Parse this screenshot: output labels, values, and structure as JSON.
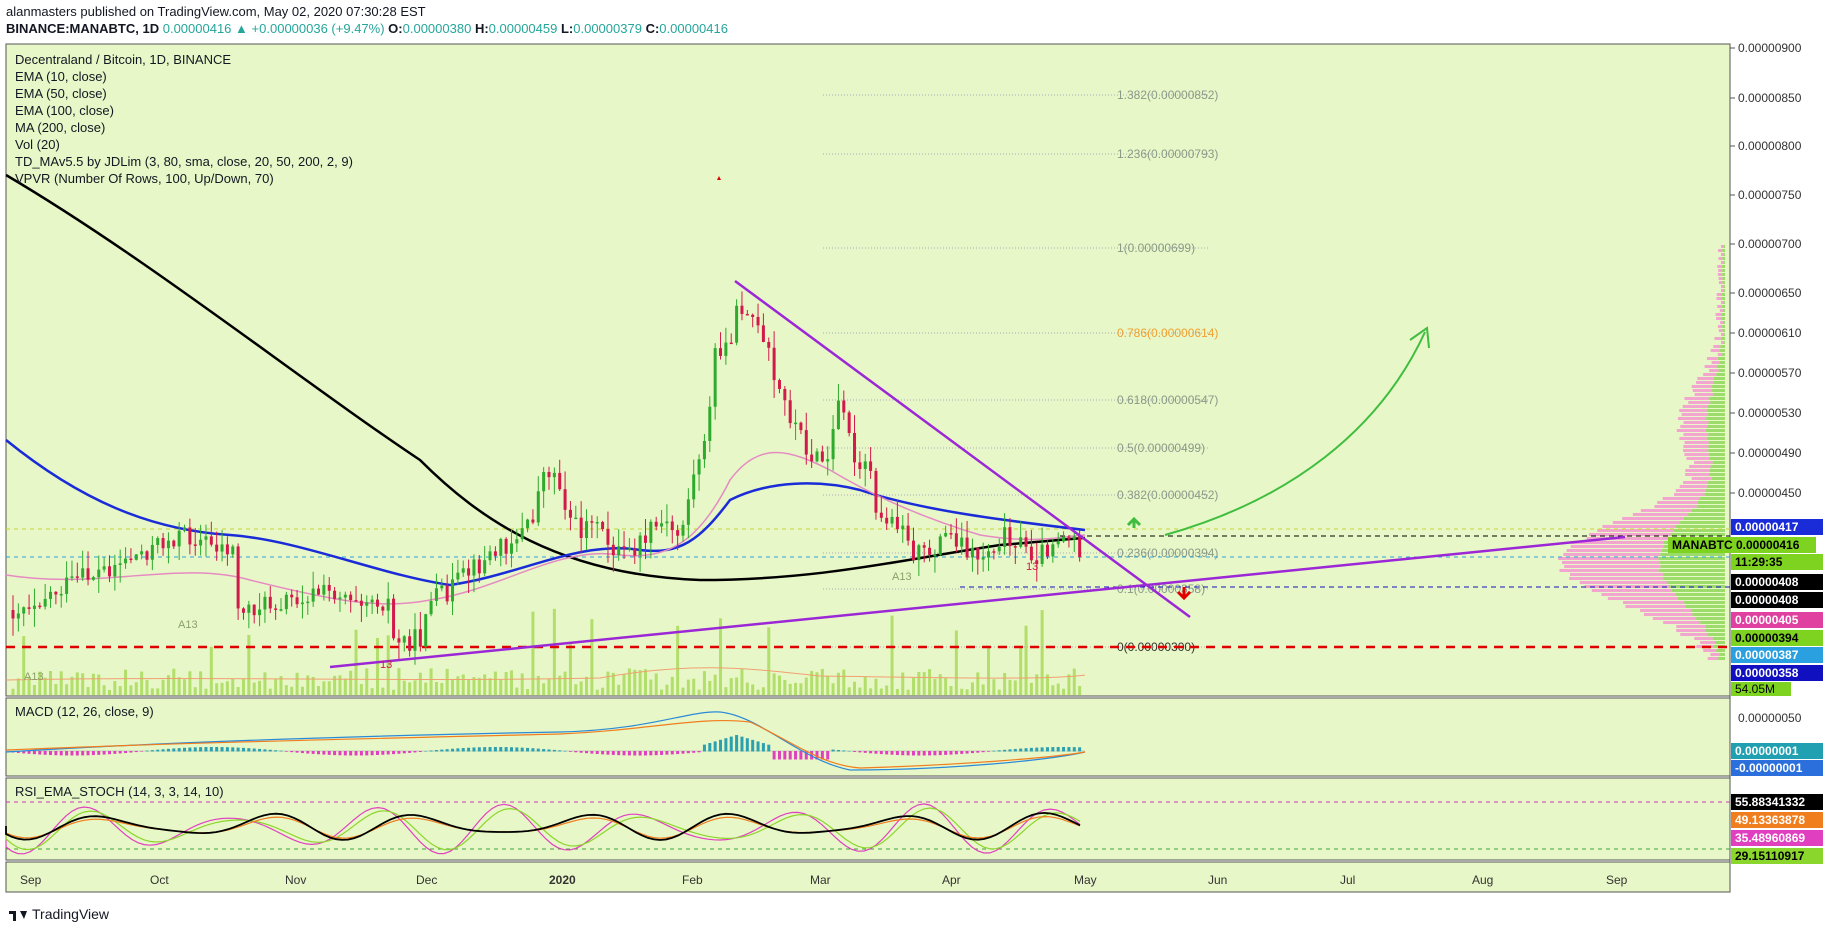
{
  "header": {
    "publisher_line": "alanmasters published on TradingView.com, May 02, 2020 07:30:28 EST",
    "symbol": "BINANCE:MANABTC, 1D",
    "last": "0.00000416",
    "change": "+0.00000036 (+9.47%)",
    "o_label": "O:",
    "o_value": "0.00000380",
    "h_label": "H:",
    "h_value": "0.00000459",
    "l_label": "L:",
    "l_value": "0.00000379",
    "c_label": "C:",
    "c_value": "0.00000416"
  },
  "legend": {
    "title": "Decentraland / Bitcoin, 1D, BINANCE",
    "lines": [
      "EMA (10, close)",
      "EMA (50, close)",
      "EMA (100, close)",
      "MA (200, close)",
      "Vol (20)",
      "TD_MAv5.5 by JDLim (3, 80, sma, close, 20, 50, 200, 2, 9)",
      "VPVR (Number Of Rows, 100, Up/Down, 70)"
    ]
  },
  "panes": {
    "macd_title": "MACD (12, 26, close, 9)",
    "rsi_title": "RSI_EMA_STOCH (14, 3, 3, 14, 10)"
  },
  "colors": {
    "background": "#e8f7c7",
    "ma200": "#000000",
    "ema100": "#1a2bd8",
    "ema50": "#e58bc2",
    "trendline": "#9b27d6",
    "arrow": "#3fbd3f",
    "support": "#e00000",
    "up_candle": "#2eaa2e",
    "down_candle": "#d11a4a"
  },
  "footer": {
    "brand": "TradingView"
  },
  "chart_data": {
    "type": "candlestick",
    "symbol": "MANABTC",
    "x_ticks": [
      "Sep",
      "Oct",
      "Nov",
      "Dec",
      "2020",
      "Feb",
      "Mar",
      "Apr",
      "May",
      "Jun",
      "Jul",
      "Aug",
      "Sep"
    ],
    "y_ticks": [
      "0.00000900",
      "0.00000850",
      "0.00000800",
      "0.00000750",
      "0.00000700",
      "0.00000650",
      "0.00000610",
      "0.00000570",
      "0.00000530",
      "0.00000490",
      "0.00000450"
    ],
    "fib_levels": [
      {
        "label": "1.382(0.00000852)",
        "value": 8.52e-06
      },
      {
        "label": "1.236(0.00000793)",
        "value": 7.93e-06
      },
      {
        "label": "1(0.00000699)",
        "value": 6.99e-06
      },
      {
        "label": "0.786(0.00000614)",
        "value": 6.14e-06
      },
      {
        "label": "0.618(0.00000547)",
        "value": 5.47e-06
      },
      {
        "label": "0.5(0.00000499)",
        "value": 4.99e-06
      },
      {
        "label": "0.382(0.00000452)",
        "value": 4.52e-06
      },
      {
        "label": "0.236(0.00000394)",
        "value": 3.94e-06
      },
      {
        "label": "0.1(0.00000358)",
        "value": 3.58e-06
      },
      {
        "label": "0(0.00000300)",
        "value": 3e-06
      }
    ],
    "price_badges": [
      {
        "text": "0.00000417",
        "color": "#1a2bd8"
      },
      {
        "text": "MANABTC",
        "color": "#7ed321",
        "extra": "0.00000416"
      },
      {
        "text": "11:29:35",
        "color": "#7ed321"
      },
      {
        "text": "0.00000408",
        "color": "#000000"
      },
      {
        "text": "0.00000408",
        "color": "#000000"
      },
      {
        "text": "0.00000405",
        "color": "#e040a0"
      },
      {
        "text": "0.00000394",
        "color": "#7ed321"
      },
      {
        "text": "0.00000387",
        "color": "#2aa0e0"
      },
      {
        "text": "0.00000358",
        "color": "#1010c0"
      }
    ],
    "volume_badge": "54.05M",
    "macd_axis": "0.00000050",
    "macd_badges": [
      {
        "text": "0.00000001",
        "color": "#20a0b0"
      },
      {
        "text": "-0.00000001",
        "color": "#2a6fdb"
      }
    ],
    "rsi_badges": [
      {
        "text": "55.88341332",
        "color": "#000000"
      },
      {
        "text": "49.13363878",
        "color": "#f07d1e"
      },
      {
        "text": "35.48960869",
        "color": "#e040c0"
      },
      {
        "text": "29.15110917",
        "color": "#8bd62c"
      }
    ],
    "annotations": [
      "A13",
      "A13",
      "A13",
      "13",
      "13"
    ],
    "ohlc_last": {
      "open": 3.8e-06,
      "high": 4.59e-06,
      "low": 3.79e-06,
      "close": 4.16e-06
    }
  }
}
